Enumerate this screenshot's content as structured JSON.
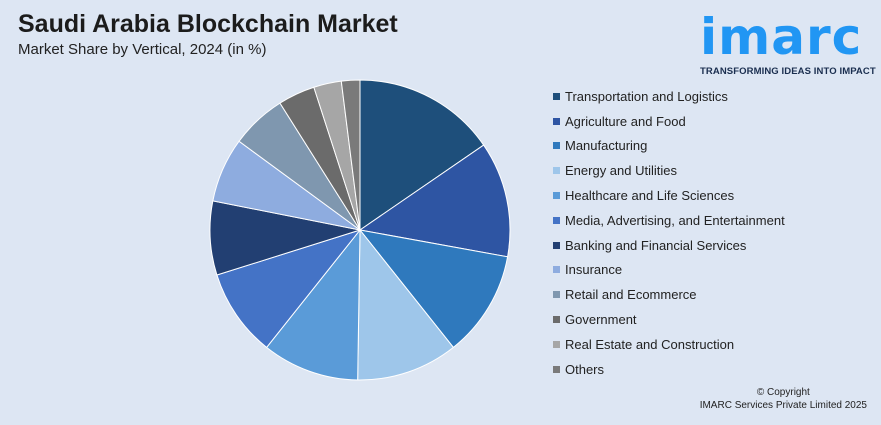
{
  "header": {
    "title": "Saudi Arabia Blockchain Market",
    "subtitle": "Market Share by Vertical, 2024 (in %)"
  },
  "logo": {
    "word": "imarc",
    "tagline": "TRANSFORMING IDEAS INTO IMPACT"
  },
  "chart_data": {
    "type": "pie",
    "title": "Saudi Arabia Blockchain Market",
    "subtitle": "Market Share by Vertical, 2024 (in %)",
    "legend_position": "right",
    "categories": [
      "Transportation and Logistics",
      "Agriculture and Food",
      "Manufacturing",
      "Energy and Utilities",
      "Healthcare and Life Sciences",
      "Media, Advertising, and Entertainment",
      "Banking and Financial Services",
      "Insurance",
      "Retail and Ecommerce",
      "Government",
      "Real Estate and Construction",
      "Others"
    ],
    "values": [
      15.5,
      12.5,
      11.5,
      11.0,
      10.5,
      9.5,
      8.0,
      7.0,
      6.0,
      4.0,
      3.0,
      2.0
    ],
    "colors": [
      "#1e4f7b",
      "#2e55a3",
      "#2f79bd",
      "#9ec6ea",
      "#5a9bd8",
      "#4473c6",
      "#223f72",
      "#8eacdf",
      "#7f97af",
      "#6b6b6b",
      "#a6a6a6",
      "#7a7a7a"
    ]
  },
  "footer": {
    "copyright_line1": "© Copyright",
    "copyright_line2": "IMARC Services Private Limited 2025"
  }
}
